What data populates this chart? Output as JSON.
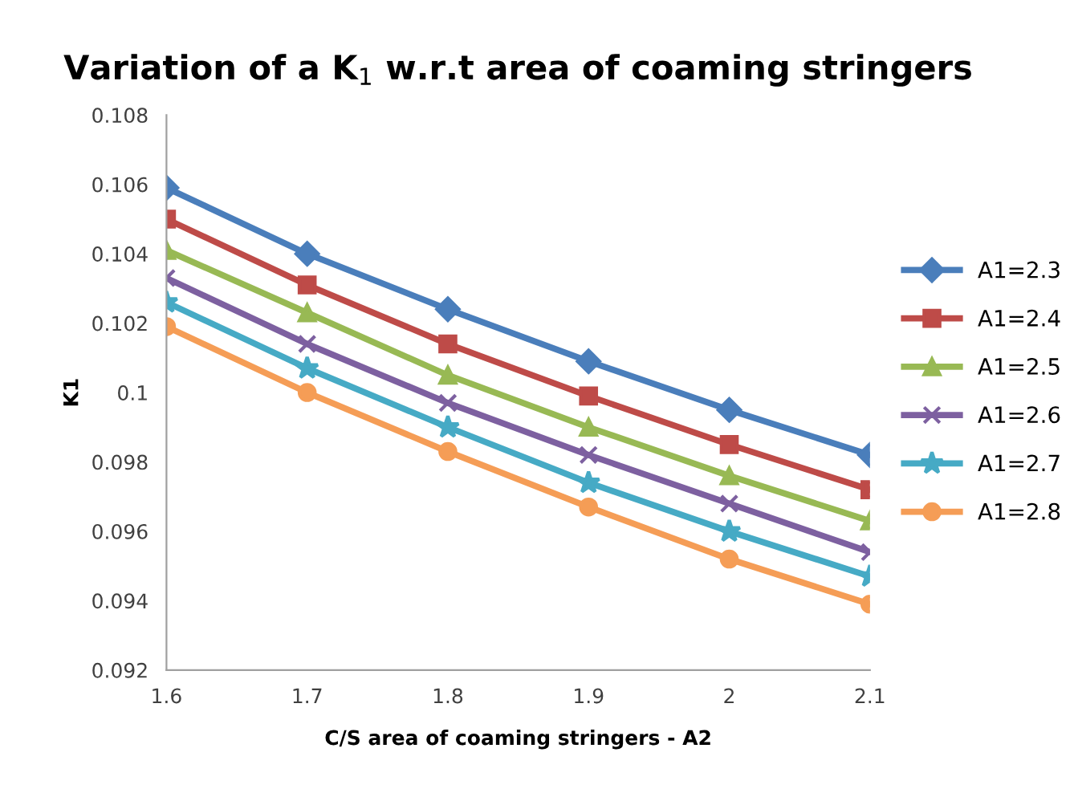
{
  "chart_data": {
    "type": "line",
    "title": "Variation of a K$_{1}$ w.r.t area of coaming stringers",
    "xlabel": "C/S area of coaming stringers - A2",
    "ylabel": "K1",
    "x": [
      1.6,
      1.7,
      1.8,
      1.9,
      2.0,
      2.1
    ],
    "xlim": [
      1.6,
      2.1
    ],
    "xticks": [
      1.6,
      1.7,
      1.8,
      1.9,
      {
        "value": 2.0,
        "label": "2"
      },
      2.1
    ],
    "ylim": [
      0.092,
      0.108
    ],
    "yticks": [
      0.092,
      0.094,
      0.096,
      0.098,
      {
        "value": 0.1,
        "label": "0.1"
      },
      0.102,
      0.104,
      0.106,
      0.108
    ],
    "grid": false,
    "legend": "right",
    "line_style": "solid",
    "series": [
      {
        "name": "A1=2.3",
        "color": "#4a7ebb",
        "marker": "diamond",
        "values": [
          0.1059,
          0.104,
          0.1024,
          0.1009,
          0.0995,
          0.0982
        ]
      },
      {
        "name": "A1=2.4",
        "color": "#be4b48",
        "marker": "square",
        "values": [
          0.105,
          0.1031,
          0.1014,
          0.0999,
          0.0985,
          0.0972
        ]
      },
      {
        "name": "A1=2.5",
        "color": "#98b954",
        "marker": "triangle",
        "values": [
          0.1041,
          0.1023,
          0.1005,
          0.099,
          0.0976,
          0.0963
        ]
      },
      {
        "name": "A1=2.6",
        "color": "#7d60a0",
        "marker": "cross",
        "values": [
          0.1033,
          0.1014,
          0.0997,
          0.0982,
          0.0968,
          0.0954
        ]
      },
      {
        "name": "A1=2.7",
        "color": "#46aac5",
        "marker": "star",
        "values": [
          0.1026,
          0.1007,
          0.099,
          0.0974,
          0.096,
          0.0947
        ]
      },
      {
        "name": "A1=2.8",
        "color": "#f59d56",
        "marker": "circle",
        "values": [
          0.1019,
          0.1,
          0.0983,
          0.0967,
          0.0952,
          0.0939
        ]
      }
    ]
  }
}
